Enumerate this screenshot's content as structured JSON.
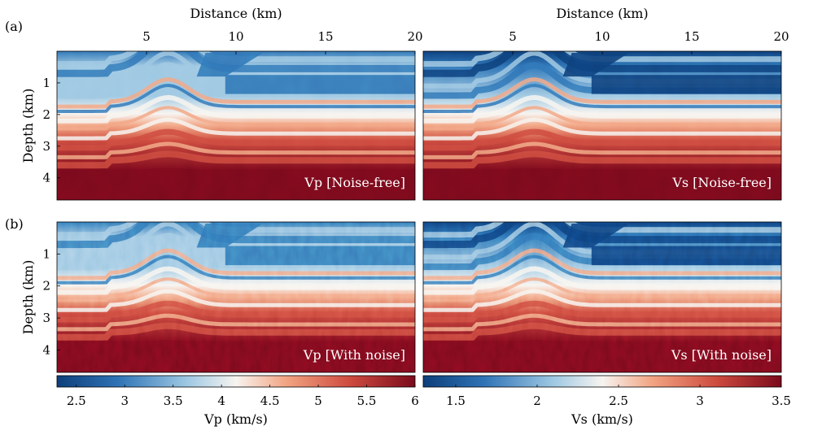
{
  "chart_data": [
    {
      "type": "heatmap",
      "panel_tag": "(a)",
      "title": "Vp [Noise-free]",
      "parameter": "Vp",
      "xlabel": "Distance (km)",
      "ylabel": "Depth (km)",
      "xlim": [
        0,
        20
      ],
      "ylim": [
        4.7,
        0
      ],
      "xticks": [
        5,
        10,
        15,
        20
      ],
      "yticks": [
        1,
        2,
        3,
        4
      ],
      "colormap": "blue-white-red",
      "clim": [
        2.3,
        6.0
      ],
      "noisy": false
    },
    {
      "type": "heatmap",
      "panel_tag": "",
      "title": "Vs [Noise-free]",
      "parameter": "Vs",
      "xlabel": "Distance (km)",
      "ylabel": "",
      "xlim": [
        0,
        20
      ],
      "ylim": [
        4.7,
        0
      ],
      "xticks": [
        5,
        10,
        15,
        20
      ],
      "yticks": [],
      "colormap": "blue-white-red",
      "clim": [
        1.3,
        3.5
      ],
      "noisy": false
    },
    {
      "type": "heatmap",
      "panel_tag": "(b)",
      "title": "Vp [With noise]",
      "parameter": "Vp",
      "xlabel": "",
      "ylabel": "Depth (km)",
      "xlim": [
        0,
        20
      ],
      "ylim": [
        4.7,
        0
      ],
      "xticks": [],
      "yticks": [
        1,
        2,
        3,
        4
      ],
      "colormap": "blue-white-red",
      "clim": [
        2.3,
        6.0
      ],
      "noisy": true
    },
    {
      "type": "heatmap",
      "panel_tag": "",
      "title": "Vs [With noise]",
      "parameter": "Vs",
      "xlabel": "",
      "ylabel": "",
      "xlim": [
        0,
        20
      ],
      "ylim": [
        4.7,
        0
      ],
      "xticks": [],
      "yticks": [],
      "colormap": "blue-white-red",
      "clim": [
        1.3,
        3.5
      ],
      "noisy": true
    }
  ],
  "colorbars": [
    {
      "label": "Vp (km/s)",
      "range": [
        2.3,
        6.0
      ],
      "ticks": [
        2.5,
        3,
        3.5,
        4,
        4.5,
        5,
        5.5,
        6
      ]
    },
    {
      "label": "Vs (km/s)",
      "range": [
        1.3,
        3.5
      ],
      "ticks": [
        1.5,
        2,
        2.5,
        3,
        3.5
      ]
    }
  ],
  "colors": {
    "deep_blue": "#0d3f7a",
    "blue": "#2f73b6",
    "light_blue": "#9cc7e2",
    "white": "#f7f4f0",
    "light_red": "#f2a482",
    "red": "#cd4a3e",
    "deep_red": "#7a0a1c"
  }
}
